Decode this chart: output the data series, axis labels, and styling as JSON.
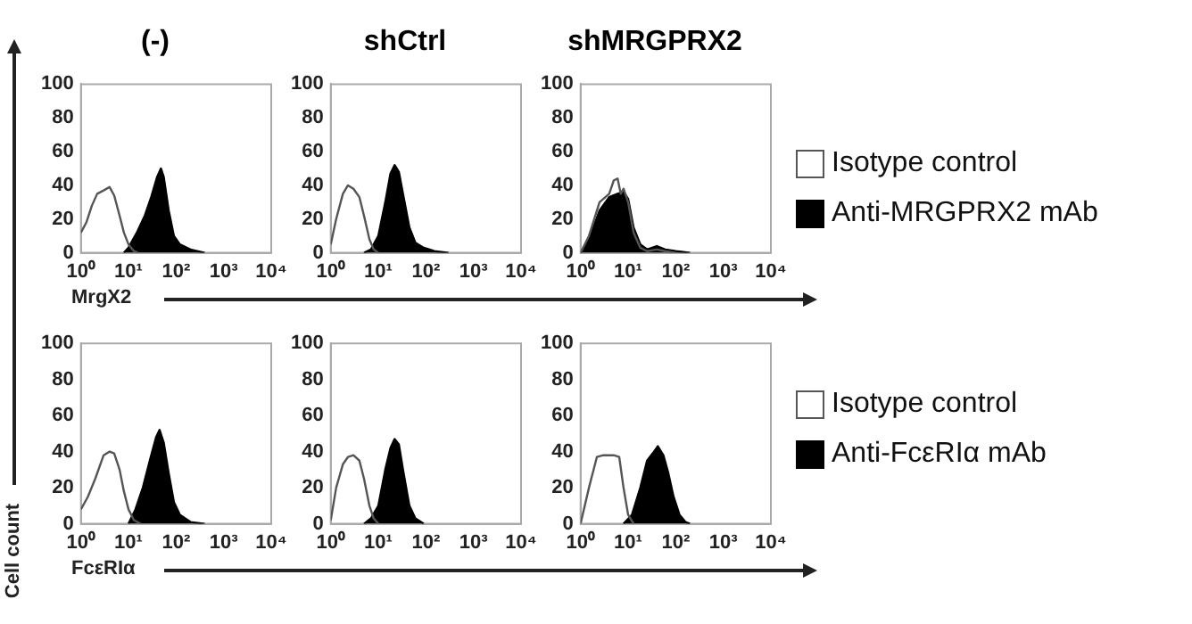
{
  "chart_data": [
    {
      "type": "area",
      "title": "(-)",
      "xlabel": "MrgX2",
      "log": "x",
      "marker": "none",
      "xlim": [
        1,
        10000
      ],
      "ylim": [
        0,
        100
      ],
      "xticks": [
        {
          "value": 1,
          "label": "10⁰"
        },
        {
          "value": 10,
          "label": "10¹"
        },
        {
          "value": 100,
          "label": "10²"
        },
        {
          "value": 1000,
          "label": "10³"
        },
        {
          "value": 10000,
          "label": "10⁴"
        }
      ],
      "yticks": [
        0,
        20,
        40,
        60,
        80,
        100
      ],
      "series": [
        {
          "type": "line",
          "color": "#555555",
          "x": [
            1,
            1.3,
            1.7,
            2.2,
            3,
            4,
            5,
            6.5,
            8,
            10,
            13,
            16
          ],
          "values": [
            12,
            18,
            28,
            35,
            37,
            39,
            34,
            22,
            12,
            5,
            1,
            0
          ]
        },
        {
          "color": "#000000",
          "x": [
            8,
            10,
            15,
            22,
            30,
            40,
            48,
            55,
            70,
            90,
            120,
            200,
            400
          ],
          "values": [
            0,
            3,
            12,
            22,
            33,
            45,
            50,
            45,
            25,
            10,
            5,
            2,
            0
          ]
        }
      ]
    },
    {
      "type": "area",
      "title": "shCtrl",
      "log": "x",
      "marker": "none",
      "xlim": [
        1,
        10000
      ],
      "ylim": [
        0,
        100
      ],
      "xticks": [
        {
          "value": 1,
          "label": "10⁰"
        },
        {
          "value": 10,
          "label": "10¹"
        },
        {
          "value": 100,
          "label": "10²"
        },
        {
          "value": 1000,
          "label": "10³"
        },
        {
          "value": 10000,
          "label": "10⁴"
        }
      ],
      "yticks": [
        0,
        20,
        40,
        60,
        80,
        100
      ],
      "series": [
        {
          "type": "line",
          "color": "#555555",
          "x": [
            1,
            1.3,
            1.8,
            2.3,
            3,
            4,
            5,
            6.5,
            8,
            10
          ],
          "values": [
            5,
            20,
            35,
            40,
            38,
            33,
            22,
            8,
            2,
            0
          ]
        },
        {
          "color": "#000000",
          "x": [
            5,
            7,
            10,
            14,
            18,
            22,
            27,
            33,
            45,
            60,
            90,
            150,
            300
          ],
          "values": [
            0,
            2,
            10,
            30,
            47,
            52,
            48,
            35,
            15,
            6,
            3,
            1,
            0
          ]
        }
      ]
    },
    {
      "type": "area",
      "title": "shMRGPRX2",
      "log": "x",
      "marker": "none",
      "legend": "right",
      "xlim": [
        1,
        10000
      ],
      "ylim": [
        0,
        100
      ],
      "xticks": [
        {
          "value": 1,
          "label": "10⁰"
        },
        {
          "value": 10,
          "label": "10¹"
        },
        {
          "value": 100,
          "label": "10²"
        },
        {
          "value": 1000,
          "label": "10³"
        },
        {
          "value": 10000,
          "label": "10⁴"
        }
      ],
      "yticks": [
        0,
        20,
        40,
        60,
        80,
        100
      ],
      "series": [
        {
          "type": "line",
          "name": "Isotype control",
          "color": "#555555",
          "x": [
            1,
            1.5,
            2.5,
            4,
            5,
            6,
            7,
            8,
            10,
            13,
            18,
            25,
            40,
            60,
            100
          ],
          "values": [
            0,
            10,
            30,
            35,
            43,
            44,
            35,
            38,
            30,
            12,
            3,
            1,
            2,
            1,
            0
          ]
        },
        {
          "name": "Anti-MRGPRX2 mAb",
          "color": "#000000",
          "x": [
            1,
            1.5,
            2.5,
            4,
            6,
            8,
            10,
            13,
            18,
            25,
            40,
            60,
            100,
            200
          ],
          "values": [
            0,
            8,
            25,
            33,
            35,
            36,
            32,
            15,
            5,
            2,
            4,
            2,
            1,
            0
          ]
        }
      ]
    },
    {
      "type": "area",
      "xlabel": "FcεRIα",
      "ylabel": "Cell count",
      "log": "x",
      "marker": "none",
      "xlim": [
        1,
        10000
      ],
      "ylim": [
        0,
        100
      ],
      "xticks": [
        {
          "value": 1,
          "label": "10⁰"
        },
        {
          "value": 10,
          "label": "10¹"
        },
        {
          "value": 100,
          "label": "10²"
        },
        {
          "value": 1000,
          "label": "10³"
        },
        {
          "value": 10000,
          "label": "10⁴"
        }
      ],
      "yticks": [
        0,
        20,
        40,
        60,
        80,
        100
      ],
      "series": [
        {
          "type": "line",
          "color": "#555555",
          "x": [
            1,
            1.4,
            2,
            3,
            4,
            5,
            6.5,
            8,
            10,
            13,
            18
          ],
          "values": [
            8,
            15,
            25,
            38,
            40,
            39,
            30,
            18,
            8,
            2,
            0
          ]
        },
        {
          "color": "#000000",
          "x": [
            10,
            14,
            20,
            28,
            38,
            45,
            55,
            70,
            90,
            120,
            200,
            400
          ],
          "values": [
            0,
            8,
            20,
            35,
            48,
            52,
            45,
            28,
            12,
            5,
            1,
            0
          ]
        }
      ]
    },
    {
      "type": "area",
      "log": "x",
      "marker": "none",
      "xlim": [
        1,
        10000
      ],
      "ylim": [
        0,
        100
      ],
      "xticks": [
        {
          "value": 1,
          "label": "10⁰"
        },
        {
          "value": 10,
          "label": "10¹"
        },
        {
          "value": 100,
          "label": "10²"
        },
        {
          "value": 1000,
          "label": "10³"
        },
        {
          "value": 10000,
          "label": "10⁴"
        }
      ],
      "yticks": [
        0,
        20,
        40,
        60,
        80,
        100
      ],
      "series": [
        {
          "type": "line",
          "color": "#555555",
          "x": [
            1,
            1.3,
            1.8,
            2.3,
            3,
            4,
            5,
            6.5,
            8,
            10
          ],
          "values": [
            2,
            20,
            33,
            37,
            38,
            35,
            25,
            10,
            3,
            0
          ]
        },
        {
          "color": "#000000",
          "x": [
            5,
            7,
            10,
            14,
            18,
            22,
            27,
            33,
            45,
            60,
            90
          ],
          "values": [
            0,
            3,
            10,
            30,
            42,
            47,
            44,
            30,
            10,
            3,
            0
          ]
        }
      ]
    },
    {
      "type": "area",
      "log": "x",
      "marker": "none",
      "legend": "right",
      "xlim": [
        1,
        10000
      ],
      "ylim": [
        0,
        100
      ],
      "xticks": [
        {
          "value": 1,
          "label": "10⁰"
        },
        {
          "value": 10,
          "label": "10¹"
        },
        {
          "value": 100,
          "label": "10²"
        },
        {
          "value": 1000,
          "label": "10³"
        },
        {
          "value": 10000,
          "label": "10⁴"
        }
      ],
      "yticks": [
        0,
        20,
        40,
        60,
        80,
        100
      ],
      "series": [
        {
          "type": "line",
          "name": "Isotype control",
          "color": "#555555",
          "x": [
            1,
            1.5,
            2.2,
            3,
            5,
            6.5,
            8,
            10,
            13
          ],
          "values": [
            0,
            20,
            37,
            38,
            38,
            37,
            20,
            5,
            0
          ]
        },
        {
          "name": "Anti-FcεRIα mAb",
          "color": "#000000",
          "x": [
            8,
            12,
            18,
            25,
            35,
            42,
            55,
            70,
            90,
            120,
            160,
            200
          ],
          "values": [
            0,
            5,
            20,
            35,
            40,
            43,
            38,
            28,
            15,
            5,
            1,
            0
          ]
        }
      ]
    }
  ]
}
